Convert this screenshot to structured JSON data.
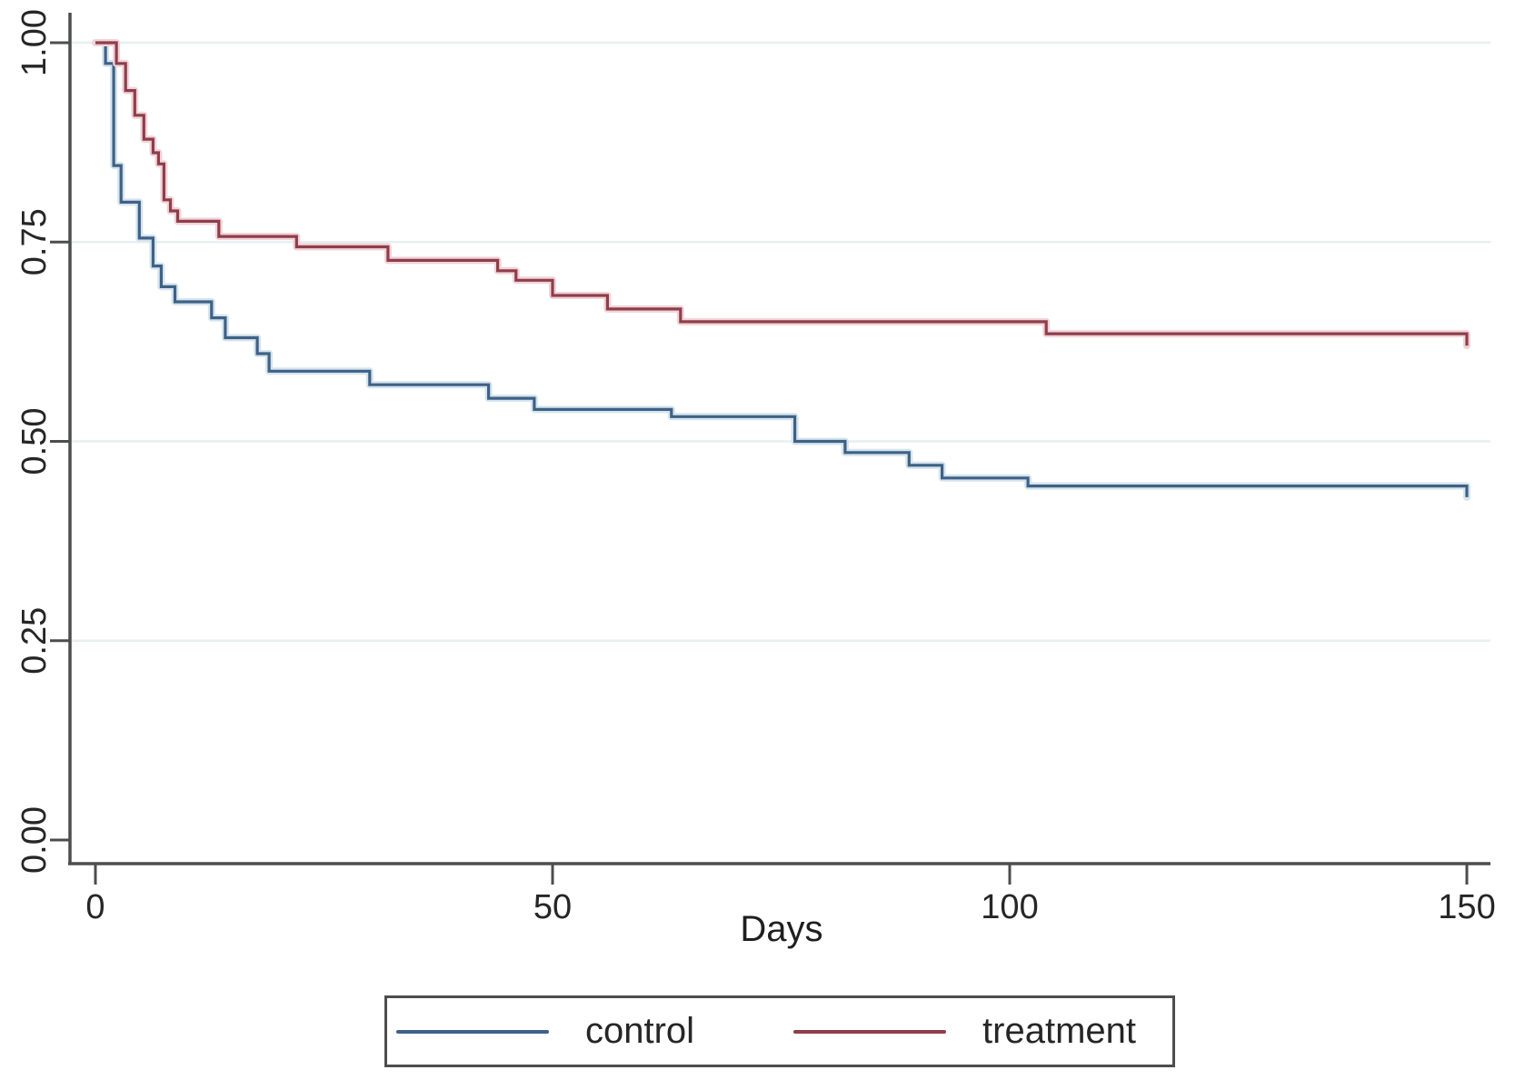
{
  "chart_data": {
    "type": "line",
    "subtype": "kaplan-meier-step",
    "title": "",
    "xlabel": "Days",
    "ylabel": "",
    "xlim": [
      0,
      150
    ],
    "ylim": [
      0.0,
      1.0
    ],
    "x_ticks": [
      0,
      50,
      100,
      150
    ],
    "y_ticks": [
      {
        "value": 0.0,
        "label": "0.00"
      },
      {
        "value": 0.25,
        "label": "0.25"
      },
      {
        "value": 0.5,
        "label": "0.50"
      },
      {
        "value": 0.75,
        "label": "0.75"
      },
      {
        "value": 1.0,
        "label": "1.00"
      }
    ],
    "grid": "horizontal",
    "gridline_values": [
      0.25,
      0.5,
      0.75,
      1.0
    ],
    "legend_position": "bottom",
    "series": [
      {
        "name": "control",
        "color": "#3e6186",
        "halo_color": "#d6e4ee",
        "points": [
          [
            0,
            1.0
          ],
          [
            1.1,
            0.974
          ],
          [
            2.0,
            0.846
          ],
          [
            2.8,
            0.8
          ],
          [
            4.8,
            0.755
          ],
          [
            6.3,
            0.72
          ],
          [
            7.2,
            0.694
          ],
          [
            8.7,
            0.675
          ],
          [
            12.7,
            0.655
          ],
          [
            14.2,
            0.63
          ],
          [
            17.7,
            0.61
          ],
          [
            19,
            0.588
          ],
          [
            30,
            0.571
          ],
          [
            43,
            0.554
          ],
          [
            48,
            0.54
          ],
          [
            63,
            0.531
          ],
          [
            76.5,
            0.5
          ],
          [
            82,
            0.486
          ],
          [
            89,
            0.47
          ],
          [
            92.6,
            0.454
          ],
          [
            102,
            0.444
          ],
          [
            150,
            0.43
          ]
        ]
      },
      {
        "name": "treatment",
        "color": "#8f3e49",
        "halo_color": "#f0d4da",
        "points": [
          [
            0,
            1.0
          ],
          [
            2.3,
            0.974
          ],
          [
            3.3,
            0.94
          ],
          [
            4.3,
            0.909
          ],
          [
            5.3,
            0.879
          ],
          [
            6.3,
            0.862
          ],
          [
            6.9,
            0.848
          ],
          [
            7.5,
            0.803
          ],
          [
            8.2,
            0.789
          ],
          [
            9.0,
            0.776
          ],
          [
            13.5,
            0.757
          ],
          [
            22,
            0.744
          ],
          [
            32,
            0.727
          ],
          [
            44,
            0.714
          ],
          [
            46,
            0.702
          ],
          [
            50,
            0.683
          ],
          [
            56,
            0.666
          ],
          [
            64,
            0.65
          ],
          [
            104,
            0.635
          ],
          [
            150,
            0.62
          ]
        ]
      }
    ]
  },
  "legend": {
    "items": [
      {
        "label": "control",
        "color": "#3e6186"
      },
      {
        "label": "treatment",
        "color": "#8f3e49"
      }
    ]
  },
  "axis": {
    "xlabel": "Days",
    "axis_color": "#4d4d4d",
    "gridline_color": "#e7eff1",
    "tick_label_color": "#262626"
  }
}
